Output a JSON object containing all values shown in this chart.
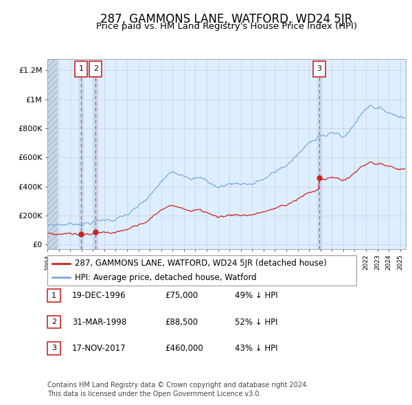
{
  "title": "287, GAMMONS LANE, WATFORD, WD24 5JR",
  "subtitle": "Price paid vs. HM Land Registry's House Price Index (HPI)",
  "yticks": [
    0,
    200000,
    400000,
    600000,
    800000,
    1000000,
    1200000
  ],
  "ytick_labels": [
    "£0",
    "£200K",
    "£400K",
    "£600K",
    "£800K",
    "£1M",
    "£1.2M"
  ],
  "xlim_start": 1994.0,
  "xlim_end": 2025.5,
  "ylim_min": -30000,
  "ylim_max": 1280000,
  "transactions": [
    {
      "id": 1,
      "date_str": "19-DEC-1996",
      "year": 1996.96,
      "price": 75000,
      "pct": "49%",
      "direction": "↓"
    },
    {
      "id": 2,
      "date_str": "31-MAR-1998",
      "year": 1998.25,
      "price": 88500,
      "pct": "52%",
      "direction": "↓"
    },
    {
      "id": 3,
      "date_str": "17-NOV-2017",
      "year": 2017.88,
      "price": 460000,
      "pct": "43%",
      "direction": "↓"
    }
  ],
  "legend_line1": "287, GAMMONS LANE, WATFORD, WD24 5JR (detached house)",
  "legend_line2": "HPI: Average price, detached house, Watford",
  "footnote1": "Contains HM Land Registry data © Crown copyright and database right 2024.",
  "footnote2": "This data is licensed under the Open Government Licence v3.0.",
  "red_color": "#cc2222",
  "blue_color": "#77aadd",
  "bg_plot_color": "#ddeeff",
  "hatch_color": "#c8d8e8",
  "grid_color": "#bbbbbb",
  "title_fontsize": 12,
  "subtitle_fontsize": 9.5,
  "tick_fontsize": 8,
  "legend_fontsize": 8.5,
  "table_fontsize": 8.5,
  "footnote_fontsize": 7
}
